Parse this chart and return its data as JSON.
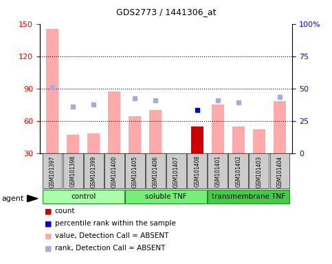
{
  "title": "GDS2773 / 1441306_at",
  "samples": [
    "GSM101397",
    "GSM101398",
    "GSM101399",
    "GSM101400",
    "GSM101405",
    "GSM101406",
    "GSM101407",
    "GSM101408",
    "GSM101401",
    "GSM101402",
    "GSM101403",
    "GSM101404"
  ],
  "groups": [
    {
      "label": "control",
      "color": "#aaffaa",
      "start": 0,
      "end": 3
    },
    {
      "label": "soluble TNF",
      "color": "#77ee77",
      "start": 4,
      "end": 7
    },
    {
      "label": "transmembrane TNF",
      "color": "#44cc44",
      "start": 8,
      "end": 11
    }
  ],
  "bar_values": [
    145,
    47,
    48,
    87,
    64,
    70,
    28,
    55,
    75,
    55,
    52,
    78
  ],
  "bar_colors": [
    "#ffaaaa",
    "#ffaaaa",
    "#ffaaaa",
    "#ffaaaa",
    "#ffaaaa",
    "#ffaaaa",
    "#ffaaaa",
    "#cc0000",
    "#ffaaaa",
    "#ffaaaa",
    "#ffaaaa",
    "#ffaaaa"
  ],
  "rank_absent_dots_y": [
    91,
    73,
    75,
    null,
    81,
    79,
    null,
    null,
    79,
    77,
    null,
    82
  ],
  "percentile_dots_y": [
    null,
    null,
    null,
    null,
    null,
    null,
    null,
    70,
    null,
    null,
    null,
    null
  ],
  "ylim_left": [
    30,
    150
  ],
  "ylim_right": [
    0,
    100
  ],
  "yticks_left": [
    30,
    60,
    90,
    120,
    150
  ],
  "yticks_right": [
    0,
    25,
    50,
    75,
    100
  ],
  "ytick_labels_right": [
    "0",
    "25",
    "50",
    "75",
    "100%"
  ],
  "hlines": [
    60,
    90,
    120
  ],
  "background_color": "#ffffff",
  "plot_bg": "#ffffff",
  "legend_items": [
    {
      "color": "#cc0000",
      "label": "count"
    },
    {
      "color": "#0000cc",
      "label": "percentile rank within the sample"
    },
    {
      "color": "#ffaaaa",
      "label": "value, Detection Call = ABSENT"
    },
    {
      "color": "#aaaadd",
      "label": "rank, Detection Call = ABSENT"
    }
  ]
}
